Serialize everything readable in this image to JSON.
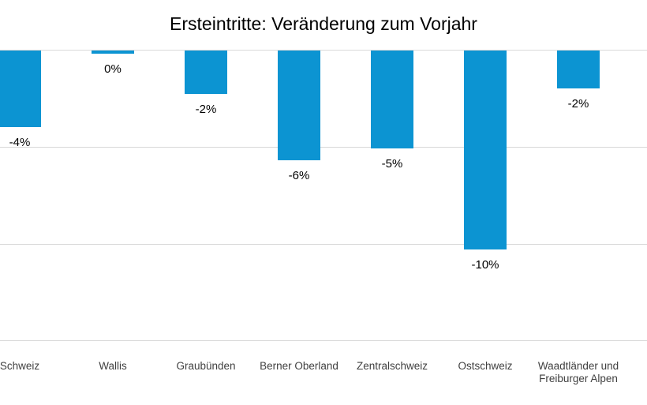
{
  "chart_data": {
    "type": "bar",
    "title": "Ersteintritte: Veränderung zum Vorjahr",
    "categories": [
      "Schweiz",
      "Wallis",
      "Graubünden",
      "Berner Oberland",
      "Zentralschweiz",
      "Ostschweiz",
      "Waadtländer und Freiburger Alpen"
    ],
    "values": [
      -4.0,
      -0.2,
      -2.3,
      -5.7,
      -5.1,
      -10.3,
      -2.0
    ],
    "data_labels": [
      "-4%",
      "0%",
      "-2%",
      "-6%",
      "-5%",
      "-10%",
      "-2%"
    ],
    "xlabel": "",
    "ylabel": "",
    "ylim": [
      -15.3,
      0
    ],
    "yticks": [
      0,
      -5,
      -10,
      -15
    ],
    "ytick_labels_visible": false,
    "grid": "horizontal",
    "legend": "none",
    "bar_color": "#0C94D2",
    "gridline_color": "#D9D9D9",
    "title_color": "#000000",
    "data_label_color": "#000000",
    "category_label_color": "#404040",
    "background": "#FFFFFF"
  }
}
